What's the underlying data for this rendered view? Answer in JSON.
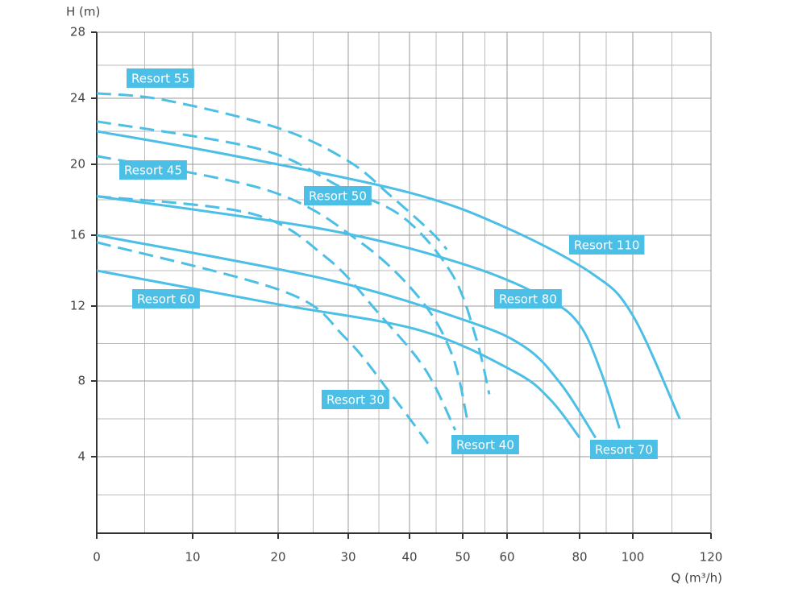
{
  "chart_data": {
    "type": "line",
    "ylabel": "H (m)",
    "xlabel": "Q (m³/h)",
    "xlim": [
      0,
      120
    ],
    "xticks": [
      0,
      10,
      20,
      30,
      40,
      50,
      60,
      80,
      100,
      120
    ],
    "ylim": [
      0,
      28
    ],
    "yticks": [
      4,
      8,
      12,
      16,
      20,
      24,
      28
    ],
    "x_minor_ticks": [
      5,
      15,
      25,
      35,
      45,
      55,
      70,
      90,
      110
    ],
    "y_minor_ticks": [
      2,
      6,
      10,
      14,
      18,
      22,
      26
    ],
    "grid": true,
    "series": [
      {
        "name": "Resort 55",
        "color": "#4cbfe6",
        "style": "dashed",
        "x": [
          0,
          7,
          20,
          30,
          37,
          44,
          47
        ],
        "values": [
          24.3,
          23.9,
          22.2,
          20.2,
          18.2,
          16.2,
          15.2
        ]
      },
      {
        "name": "Resort 50",
        "color": "#4cbfe6",
        "style": "dashed",
        "x": [
          0,
          18,
          29,
          39,
          48,
          53,
          56
        ],
        "values": [
          22.6,
          20.9,
          18.7,
          17,
          13.8,
          10.3,
          7.3
        ]
      },
      {
        "name": "Resort 45",
        "color": "#4cbfe6",
        "style": "dashed",
        "x": [
          0,
          19,
          32,
          42,
          48,
          51
        ],
        "values": [
          20.5,
          18.5,
          15.6,
          12.4,
          9.4,
          6
        ]
      },
      {
        "name": "Resort 40",
        "color": "#4cbfe6",
        "style": "dashed",
        "x": [
          0,
          17,
          27,
          35,
          43,
          48.6
        ],
        "values": [
          18.2,
          17.2,
          14.7,
          11.6,
          8.6,
          5.4
        ]
      },
      {
        "name": "Resort 30",
        "color": "#4cbfe6",
        "style": "dashed",
        "x": [
          0,
          21,
          29.6,
          37,
          44
        ],
        "values": [
          15.6,
          12.8,
          10.3,
          7.3,
          4.5
        ]
      },
      {
        "name": "Resort 110",
        "color": "#4cbfe6",
        "style": "solid",
        "x": [
          0,
          15,
          40,
          60,
          85,
          100,
          112
        ],
        "values": [
          22,
          20.5,
          18.4,
          16.4,
          13.8,
          11.5,
          6
        ]
      },
      {
        "name": "Resort 80",
        "color": "#4cbfe6",
        "style": "solid",
        "x": [
          0,
          27,
          51,
          71,
          80,
          88,
          95
        ],
        "values": [
          18.2,
          16.3,
          14.3,
          12.4,
          11,
          8.5,
          5.5
        ]
      },
      {
        "name": "Resort 70",
        "color": "#4cbfe6",
        "style": "solid",
        "x": [
          0,
          27,
          51,
          65,
          75,
          86
        ],
        "values": [
          16,
          13.5,
          11.2,
          9.8,
          7.8,
          5
        ]
      },
      {
        "name": "Resort 60",
        "color": "#4cbfe6",
        "style": "solid",
        "x": [
          0,
          20,
          42,
          62,
          72,
          80
        ],
        "values": [
          14,
          12.1,
          10.7,
          8.5,
          7,
          5
        ]
      }
    ]
  }
}
